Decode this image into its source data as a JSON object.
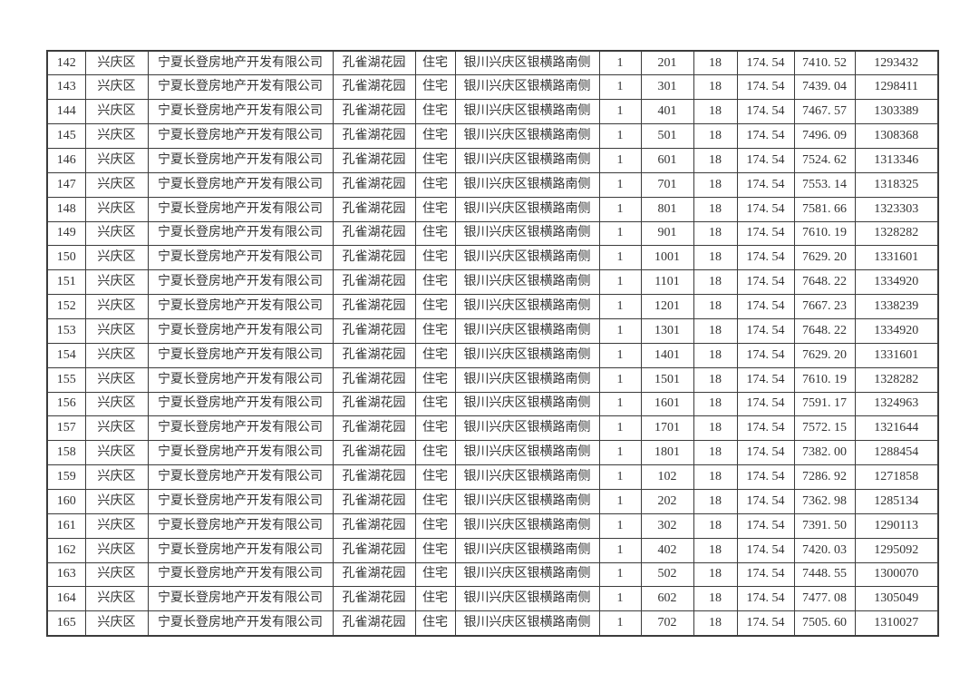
{
  "page": {
    "background_color": "#ffffff",
    "text_color": "#333333",
    "border_color": "#3c3c3c"
  },
  "table": {
    "column_names": [
      "seq",
      "district",
      "developer",
      "project",
      "usage",
      "address",
      "building",
      "room",
      "floors",
      "area",
      "unit_price",
      "total_price"
    ],
    "shared": {
      "district": "兴庆区",
      "developer": "宁夏长登房地产开发有限公司",
      "project": "孔雀湖花园",
      "usage": "住宅",
      "address": "银川兴庆区银横路南侧",
      "building": "1",
      "floors": "18",
      "area": "174. 54"
    },
    "rows": [
      {
        "seq": "142",
        "room": "201",
        "unit_price": "7410. 52",
        "total_price": "1293432"
      },
      {
        "seq": "143",
        "room": "301",
        "unit_price": "7439. 04",
        "total_price": "1298411"
      },
      {
        "seq": "144",
        "room": "401",
        "unit_price": "7467. 57",
        "total_price": "1303389"
      },
      {
        "seq": "145",
        "room": "501",
        "unit_price": "7496. 09",
        "total_price": "1308368"
      },
      {
        "seq": "146",
        "room": "601",
        "unit_price": "7524. 62",
        "total_price": "1313346"
      },
      {
        "seq": "147",
        "room": "701",
        "unit_price": "7553. 14",
        "total_price": "1318325"
      },
      {
        "seq": "148",
        "room": "801",
        "unit_price": "7581. 66",
        "total_price": "1323303"
      },
      {
        "seq": "149",
        "room": "901",
        "unit_price": "7610. 19",
        "total_price": "1328282"
      },
      {
        "seq": "150",
        "room": "1001",
        "unit_price": "7629. 20",
        "total_price": "1331601"
      },
      {
        "seq": "151",
        "room": "1101",
        "unit_price": "7648. 22",
        "total_price": "1334920"
      },
      {
        "seq": "152",
        "room": "1201",
        "unit_price": "7667. 23",
        "total_price": "1338239"
      },
      {
        "seq": "153",
        "room": "1301",
        "unit_price": "7648. 22",
        "total_price": "1334920"
      },
      {
        "seq": "154",
        "room": "1401",
        "unit_price": "7629. 20",
        "total_price": "1331601"
      },
      {
        "seq": "155",
        "room": "1501",
        "unit_price": "7610. 19",
        "total_price": "1328282"
      },
      {
        "seq": "156",
        "room": "1601",
        "unit_price": "7591. 17",
        "total_price": "1324963"
      },
      {
        "seq": "157",
        "room": "1701",
        "unit_price": "7572. 15",
        "total_price": "1321644"
      },
      {
        "seq": "158",
        "room": "1801",
        "unit_price": "7382. 00",
        "total_price": "1288454"
      },
      {
        "seq": "159",
        "room": "102",
        "unit_price": "7286. 92",
        "total_price": "1271858"
      },
      {
        "seq": "160",
        "room": "202",
        "unit_price": "7362. 98",
        "total_price": "1285134"
      },
      {
        "seq": "161",
        "room": "302",
        "unit_price": "7391. 50",
        "total_price": "1290113"
      },
      {
        "seq": "162",
        "room": "402",
        "unit_price": "7420. 03",
        "total_price": "1295092"
      },
      {
        "seq": "163",
        "room": "502",
        "unit_price": "7448. 55",
        "total_price": "1300070"
      },
      {
        "seq": "164",
        "room": "602",
        "unit_price": "7477. 08",
        "total_price": "1305049"
      },
      {
        "seq": "165",
        "room": "702",
        "unit_price": "7505. 60",
        "total_price": "1310027"
      }
    ]
  }
}
